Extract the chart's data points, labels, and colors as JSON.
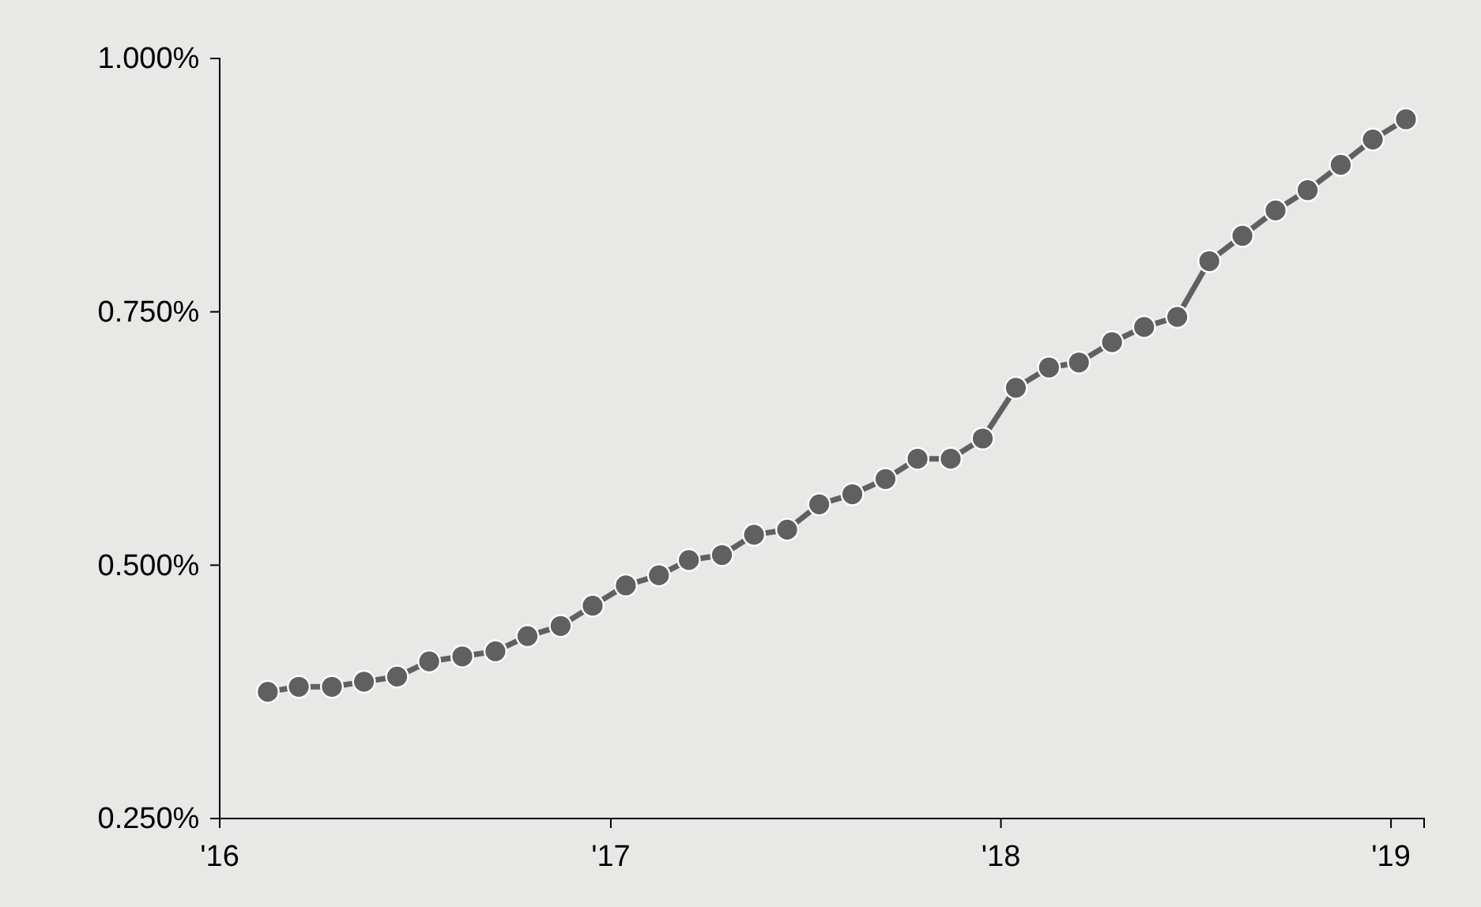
{
  "chart_data": {
    "type": "line",
    "x": [
      "2016-02-15",
      "2016-03-15",
      "2016-04-15",
      "2016-05-15",
      "2016-06-15",
      "2016-07-15",
      "2016-08-15",
      "2016-09-15",
      "2016-10-15",
      "2016-11-15",
      "2016-12-15",
      "2017-01-15",
      "2017-02-15",
      "2017-03-15",
      "2017-04-15",
      "2017-05-15",
      "2017-06-15",
      "2017-07-15",
      "2017-08-15",
      "2017-09-15",
      "2017-10-15",
      "2017-11-15",
      "2017-12-15",
      "2018-01-15",
      "2018-02-15",
      "2018-03-15",
      "2018-04-15",
      "2018-05-15",
      "2018-06-15",
      "2018-07-15",
      "2018-08-15",
      "2018-09-15",
      "2018-10-15",
      "2018-11-15",
      "2018-12-15",
      "2019-01-15"
    ],
    "series": [
      {
        "color": "#606060",
        "values": [
          0.375,
          0.38,
          0.38,
          0.385,
          0.39,
          0.405,
          0.41,
          0.415,
          0.43,
          0.44,
          0.46,
          0.48,
          0.49,
          0.505,
          0.51,
          0.53,
          0.535,
          0.56,
          0.57,
          0.585,
          0.605,
          0.605,
          0.625,
          0.675,
          0.695,
          0.7,
          0.72,
          0.735,
          0.745,
          0.8,
          0.825,
          0.85,
          0.87,
          0.895,
          0.92,
          0.94
        ]
      }
    ],
    "xlim": [
      "2016-01-01",
      "2019-02-01"
    ],
    "xticks": [
      {
        "value": "2016-01-01",
        "label": "'16"
      },
      {
        "value": "2017-01-01",
        "label": "'17"
      },
      {
        "value": "2018-01-01",
        "label": "'18"
      },
      {
        "value": "2019-01-01",
        "label": "'19"
      }
    ],
    "ylim": [
      0.25,
      1.0
    ],
    "yticks": [
      {
        "value": 0.25,
        "label": "0.250%"
      },
      {
        "value": 0.5,
        "label": "0.500%"
      },
      {
        "value": 0.75,
        "label": "0.750%"
      },
      {
        "value": 1.0,
        "label": "1.000%"
      }
    ],
    "marker": "circle",
    "line_style": "solid",
    "grid": false
  }
}
